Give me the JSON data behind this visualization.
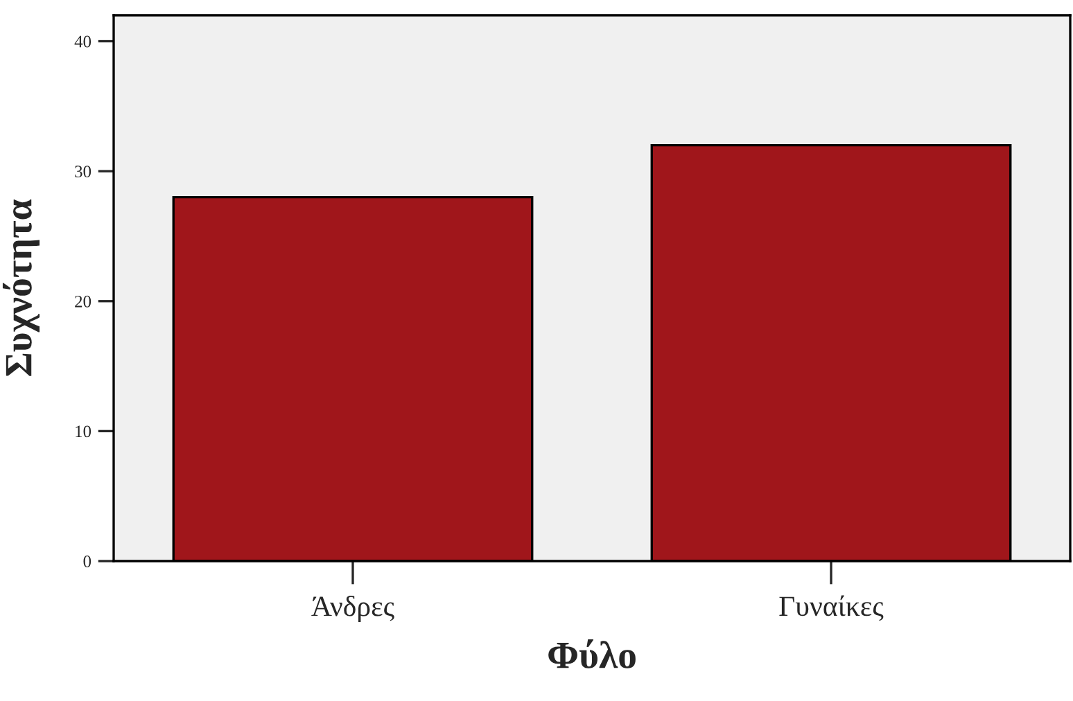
{
  "chart_data": {
    "type": "bar",
    "xlabel": "Φύλο",
    "ylabel": "Συχνότητα",
    "categories": [
      "Άνδρες",
      "Γυναίκες"
    ],
    "values": [
      28,
      32
    ],
    "color": "#a0161b",
    "ylim": [
      0,
      42
    ],
    "yticks": [
      0,
      10,
      20,
      30,
      40
    ],
    "grid": false
  }
}
